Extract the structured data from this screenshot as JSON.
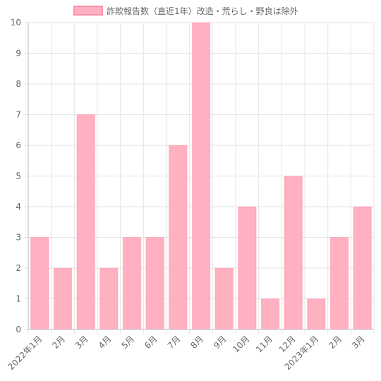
{
  "chart_data": {
    "type": "bar",
    "legend": {
      "label": "詐欺報告数（直近1年）改造・荒らし・野良は除外",
      "position": "top"
    },
    "categories": [
      "2022年1月",
      "2月",
      "3月",
      "4月",
      "5月",
      "6月",
      "7月",
      "8月",
      "9月",
      "10月",
      "11月",
      "12月",
      "2023年1月",
      "2月",
      "3月"
    ],
    "series": [
      {
        "name": "詐欺報告数（直近1年）改造・荒らし・野良は除外",
        "values": [
          3,
          2,
          7,
          2,
          3,
          3,
          6,
          10,
          2,
          4,
          1,
          5,
          1,
          3,
          4
        ],
        "color": "#ffb1c1",
        "border_color": "#ff6384"
      }
    ],
    "ylim": [
      0,
      10
    ],
    "y_ticks": [
      0,
      1,
      2,
      3,
      4,
      5,
      6,
      7,
      8,
      9,
      10
    ],
    "grid": true
  }
}
